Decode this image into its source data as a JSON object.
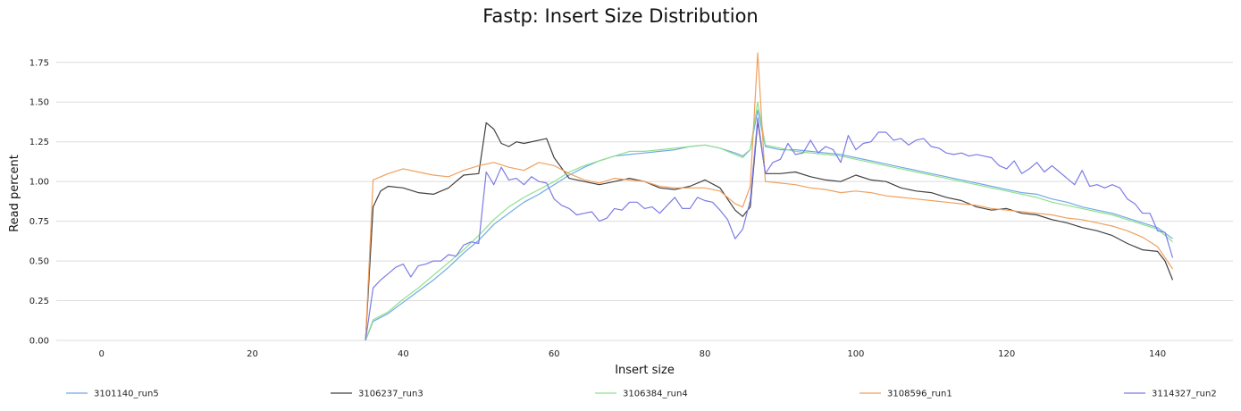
{
  "chart_data": {
    "type": "line",
    "title": "Fastp: Insert Size Distribution",
    "xlabel": "Insert size",
    "ylabel": "Read percent",
    "xlim": [
      -6,
      150
    ],
    "ylim": [
      0,
      1.85
    ],
    "x_ticks": [
      0,
      20,
      40,
      60,
      80,
      100,
      120,
      140
    ],
    "y_ticks": [
      0.0,
      0.25,
      0.5,
      0.75,
      1.0,
      1.25,
      1.5,
      1.75
    ],
    "y_tick_labels": [
      "0.00",
      "0.25",
      "0.50",
      "0.75",
      "1.00",
      "1.25",
      "1.50",
      "1.75"
    ],
    "grid": "horizontal",
    "legend_position": "bottom",
    "series": [
      {
        "name": "3101140_run5",
        "color": "#6fa8e8",
        "x": [
          35,
          36,
          38,
          40,
          42,
          44,
          46,
          48,
          50,
          52,
          54,
          56,
          58,
          60,
          62,
          64,
          66,
          68,
          70,
          72,
          74,
          76,
          78,
          80,
          82,
          84,
          85,
          86,
          87,
          88,
          90,
          92,
          94,
          96,
          98,
          100,
          102,
          104,
          106,
          108,
          110,
          112,
          114,
          116,
          118,
          120,
          122,
          124,
          126,
          128,
          130,
          132,
          134,
          136,
          138,
          140,
          142
        ],
        "y": [
          0.0,
          0.12,
          0.17,
          0.24,
          0.31,
          0.38,
          0.46,
          0.55,
          0.63,
          0.73,
          0.8,
          0.87,
          0.92,
          0.98,
          1.04,
          1.09,
          1.13,
          1.16,
          1.17,
          1.18,
          1.19,
          1.2,
          1.22,
          1.23,
          1.21,
          1.18,
          1.16,
          1.2,
          1.45,
          1.22,
          1.2,
          1.2,
          1.19,
          1.18,
          1.17,
          1.15,
          1.13,
          1.11,
          1.09,
          1.07,
          1.05,
          1.03,
          1.01,
          0.99,
          0.97,
          0.95,
          0.93,
          0.92,
          0.89,
          0.87,
          0.84,
          0.82,
          0.8,
          0.77,
          0.74,
          0.71,
          0.64
        ]
      },
      {
        "name": "3106237_run3",
        "color": "#404040",
        "x": [
          35,
          36,
          37,
          38,
          40,
          42,
          44,
          46,
          48,
          50,
          51,
          52,
          53,
          54,
          55,
          56,
          58,
          59,
          60,
          62,
          64,
          66,
          68,
          70,
          72,
          74,
          76,
          78,
          80,
          82,
          84,
          85,
          86,
          87,
          88,
          90,
          92,
          94,
          96,
          98,
          100,
          102,
          104,
          106,
          108,
          110,
          112,
          114,
          116,
          118,
          120,
          122,
          124,
          126,
          128,
          130,
          132,
          134,
          136,
          138,
          140,
          141,
          142
        ],
        "y": [
          0.0,
          0.84,
          0.94,
          0.97,
          0.96,
          0.93,
          0.92,
          0.96,
          1.04,
          1.05,
          1.37,
          1.33,
          1.24,
          1.22,
          1.25,
          1.24,
          1.26,
          1.27,
          1.15,
          1.02,
          1.0,
          0.98,
          1.0,
          1.02,
          1.0,
          0.96,
          0.95,
          0.97,
          1.01,
          0.96,
          0.82,
          0.78,
          0.84,
          1.38,
          1.05,
          1.05,
          1.06,
          1.03,
          1.01,
          1.0,
          1.04,
          1.01,
          1.0,
          0.96,
          0.94,
          0.93,
          0.9,
          0.88,
          0.84,
          0.82,
          0.83,
          0.8,
          0.79,
          0.76,
          0.74,
          0.71,
          0.69,
          0.66,
          0.61,
          0.57,
          0.56,
          0.5,
          0.38
        ]
      },
      {
        "name": "3106384_run4",
        "color": "#8ee08a",
        "x": [
          35,
          36,
          38,
          40,
          42,
          44,
          46,
          48,
          50,
          52,
          54,
          56,
          58,
          60,
          62,
          64,
          66,
          68,
          70,
          72,
          74,
          76,
          78,
          80,
          82,
          84,
          85,
          86,
          87,
          88,
          90,
          92,
          94,
          96,
          98,
          100,
          102,
          104,
          106,
          108,
          110,
          112,
          114,
          116,
          118,
          120,
          122,
          124,
          126,
          128,
          130,
          132,
          134,
          136,
          138,
          140,
          142
        ],
        "y": [
          0.0,
          0.13,
          0.18,
          0.26,
          0.33,
          0.41,
          0.49,
          0.57,
          0.66,
          0.76,
          0.84,
          0.9,
          0.95,
          1.0,
          1.06,
          1.1,
          1.13,
          1.16,
          1.19,
          1.19,
          1.2,
          1.21,
          1.22,
          1.23,
          1.21,
          1.17,
          1.15,
          1.2,
          1.5,
          1.23,
          1.21,
          1.19,
          1.18,
          1.17,
          1.16,
          1.14,
          1.12,
          1.1,
          1.08,
          1.06,
          1.04,
          1.02,
          1.0,
          0.98,
          0.96,
          0.94,
          0.92,
          0.9,
          0.87,
          0.85,
          0.83,
          0.81,
          0.79,
          0.76,
          0.73,
          0.7,
          0.62
        ]
      },
      {
        "name": "3108596_run1",
        "color": "#f0a05e",
        "x": [
          35,
          36,
          38,
          40,
          42,
          44,
          46,
          48,
          50,
          52,
          54,
          56,
          58,
          60,
          62,
          64,
          66,
          68,
          70,
          72,
          74,
          76,
          78,
          80,
          82,
          84,
          85,
          86,
          87,
          88,
          90,
          92,
          94,
          96,
          98,
          100,
          102,
          104,
          106,
          108,
          110,
          112,
          114,
          116,
          118,
          120,
          122,
          124,
          126,
          128,
          130,
          132,
          134,
          136,
          138,
          140,
          142
        ],
        "y": [
          0.0,
          1.01,
          1.05,
          1.08,
          1.06,
          1.04,
          1.03,
          1.07,
          1.1,
          1.12,
          1.09,
          1.07,
          1.12,
          1.1,
          1.05,
          1.01,
          0.99,
          1.02,
          1.01,
          1.0,
          0.97,
          0.96,
          0.96,
          0.96,
          0.94,
          0.86,
          0.84,
          0.97,
          1.81,
          1.0,
          0.99,
          0.98,
          0.96,
          0.95,
          0.93,
          0.94,
          0.93,
          0.91,
          0.9,
          0.89,
          0.88,
          0.87,
          0.86,
          0.85,
          0.83,
          0.82,
          0.81,
          0.8,
          0.79,
          0.77,
          0.76,
          0.74,
          0.72,
          0.69,
          0.65,
          0.59,
          0.45
        ]
      },
      {
        "name": "3114327_run2",
        "color": "#7b7be6",
        "x": [
          35,
          36,
          37,
          38,
          39,
          40,
          41,
          42,
          43,
          44,
          45,
          46,
          47,
          48,
          49,
          50,
          51,
          52,
          53,
          54,
          55,
          56,
          57,
          58,
          59,
          60,
          61,
          62,
          63,
          64,
          65,
          66,
          67,
          68,
          69,
          70,
          71,
          72,
          73,
          74,
          75,
          76,
          77,
          78,
          79,
          80,
          81,
          82,
          83,
          84,
          85,
          86,
          87,
          88,
          89,
          90,
          91,
          92,
          93,
          94,
          95,
          96,
          97,
          98,
          99,
          100,
          101,
          102,
          103,
          104,
          105,
          106,
          107,
          108,
          109,
          110,
          111,
          112,
          113,
          114,
          115,
          116,
          117,
          118,
          119,
          120,
          121,
          122,
          123,
          124,
          125,
          126,
          127,
          128,
          129,
          130,
          131,
          132,
          133,
          134,
          135,
          136,
          137,
          138,
          139,
          140,
          141,
          142
        ],
        "y": [
          0.0,
          0.33,
          0.38,
          0.42,
          0.46,
          0.48,
          0.4,
          0.47,
          0.48,
          0.5,
          0.5,
          0.54,
          0.53,
          0.6,
          0.62,
          0.61,
          1.06,
          0.98,
          1.09,
          1.01,
          1.02,
          0.98,
          1.03,
          1.0,
          0.99,
          0.89,
          0.85,
          0.83,
          0.79,
          0.8,
          0.81,
          0.75,
          0.77,
          0.83,
          0.82,
          0.87,
          0.87,
          0.83,
          0.84,
          0.8,
          0.85,
          0.9,
          0.83,
          0.83,
          0.9,
          0.88,
          0.87,
          0.82,
          0.76,
          0.64,
          0.7,
          0.88,
          1.4,
          1.05,
          1.12,
          1.14,
          1.24,
          1.17,
          1.18,
          1.26,
          1.18,
          1.22,
          1.2,
          1.12,
          1.29,
          1.2,
          1.24,
          1.25,
          1.31,
          1.31,
          1.26,
          1.27,
          1.23,
          1.26,
          1.27,
          1.22,
          1.21,
          1.18,
          1.17,
          1.18,
          1.16,
          1.17,
          1.16,
          1.15,
          1.1,
          1.08,
          1.13,
          1.05,
          1.08,
          1.12,
          1.06,
          1.1,
          1.06,
          1.02,
          0.98,
          1.07,
          0.97,
          0.98,
          0.96,
          0.98,
          0.96,
          0.89,
          0.86,
          0.8,
          0.8,
          0.69,
          0.68,
          0.52
        ]
      }
    ]
  }
}
